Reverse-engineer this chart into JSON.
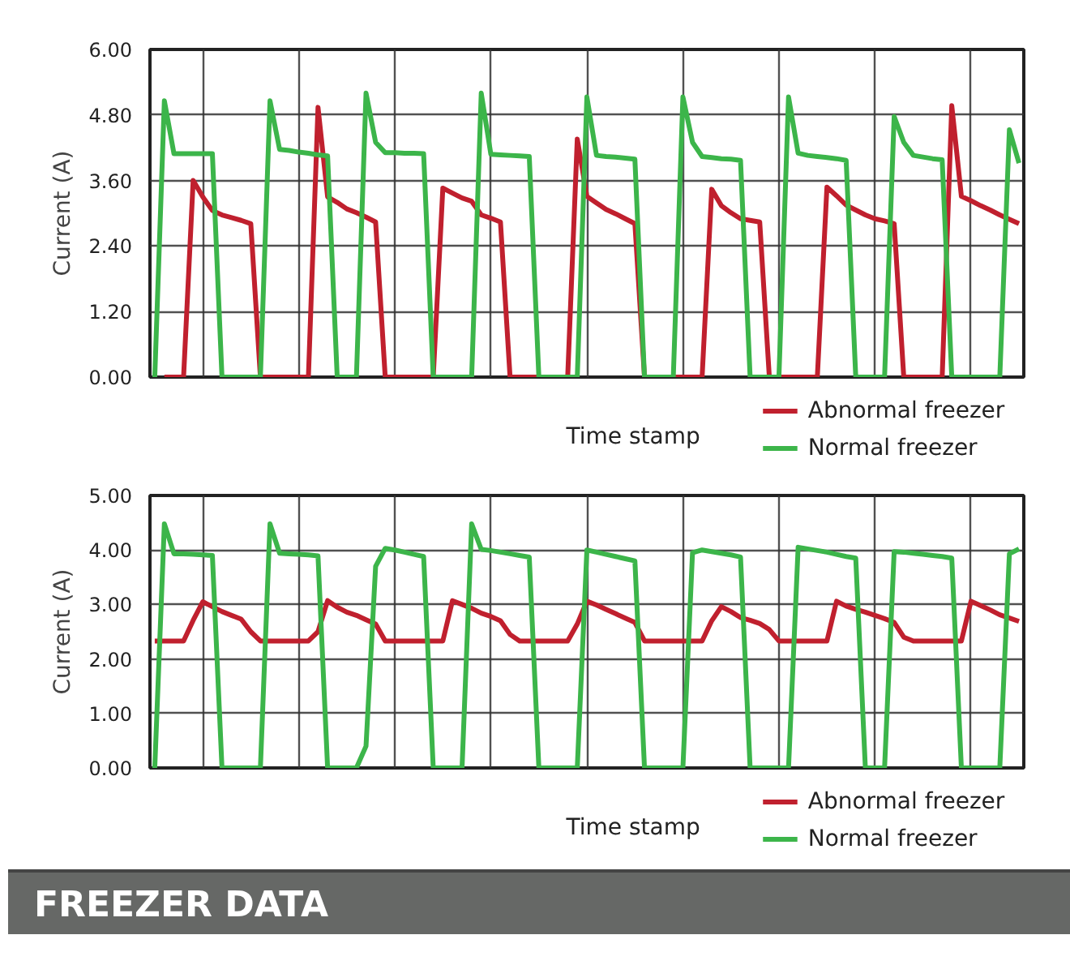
{
  "chart_data": [
    {
      "type": "line",
      "xlabel": "Time stamp",
      "ylabel": "Current (A)",
      "ylim": [
        0,
        6
      ],
      "grid": true,
      "legend": "bottom right",
      "categories": [
        null,
        null,
        null,
        null,
        null,
        null,
        null,
        null,
        null,
        null,
        null,
        null,
        null,
        null,
        null,
        null,
        null,
        null,
        null,
        null,
        null,
        null,
        null,
        null,
        null,
        null,
        null,
        null,
        null,
        null,
        null,
        null,
        null,
        null,
        null,
        null,
        null,
        null,
        null,
        null,
        null,
        null,
        null,
        null,
        null,
        null,
        null,
        null,
        null,
        null,
        null,
        null,
        null,
        null,
        null,
        null,
        null,
        null,
        null,
        null,
        null,
        null,
        null,
        null,
        null,
        null,
        null,
        null,
        null,
        null,
        null,
        null,
        null,
        null,
        null,
        null,
        null,
        null,
        null,
        null,
        null,
        null,
        null,
        null,
        null,
        null,
        null,
        null,
        null,
        null,
        null
      ],
      "yticks": [
        {
          "value": 0,
          "label": "0.00"
        },
        {
          "value": 1.2,
          "label": "1.20"
        },
        {
          "value": 2.4,
          "label": "2.40"
        },
        {
          "value": 3.6,
          "label": "3.60"
        },
        {
          "value": 4.8,
          "label": "4.80"
        },
        {
          "value": 6,
          "label": "6.00"
        }
      ],
      "series": [
        {
          "name": "Abnormal freezer",
          "color": "#c0202e",
          "values": [
            null,
            0,
            0,
            0,
            3.6,
            3.3,
            3.05,
            2.97,
            2.92,
            2.87,
            2.81,
            0,
            0,
            0,
            0,
            0,
            0,
            4.94,
            3.3,
            3.2,
            3.08,
            3.01,
            2.93,
            2.84,
            0,
            0,
            0,
            0,
            0,
            0,
            3.46,
            3.37,
            3.28,
            3.22,
            2.97,
            2.91,
            2.84,
            0,
            0,
            0,
            0,
            0,
            0,
            0,
            4.36,
            3.31,
            3.19,
            3.07,
            2.99,
            2.9,
            2.81,
            0,
            0,
            0,
            0,
            0,
            0,
            0,
            3.44,
            3.14,
            3.01,
            2.9,
            2.87,
            2.84,
            0,
            0,
            0,
            0,
            0,
            0,
            3.48,
            3.32,
            3.15,
            3.06,
            2.97,
            2.9,
            2.86,
            2.81,
            0,
            0,
            0,
            0,
            0,
            4.97,
            3.31,
            3.23,
            3.14,
            3.06,
            2.97,
            2.89,
            2.81
          ]
        },
        {
          "name": "Normal freezer",
          "color": "#3cb54a",
          "values": [
            0,
            5.06,
            4.09,
            4.09,
            4.09,
            4.09,
            4.09,
            0,
            0,
            0,
            0,
            0,
            5.06,
            4.17,
            4.15,
            4.12,
            4.1,
            4.07,
            4.05,
            0,
            0,
            0,
            5.2,
            4.3,
            4.11,
            4.11,
            4.1,
            4.1,
            4.09,
            0,
            0,
            0,
            0,
            0,
            5.2,
            4.08,
            4.07,
            4.06,
            4.05,
            4.04,
            0,
            0,
            0,
            0,
            0,
            5.13,
            4.06,
            4.04,
            4.03,
            4.01,
            3.99,
            0,
            0,
            0,
            0,
            5.13,
            4.3,
            4.04,
            4.02,
            4.0,
            3.99,
            3.97,
            0,
            0,
            0,
            0,
            5.13,
            4.1,
            4.06,
            4.04,
            4.02,
            4.0,
            3.97,
            0,
            0,
            0,
            0,
            4.77,
            4.3,
            4.06,
            4.03,
            4.0,
            3.98,
            0,
            0,
            0,
            0,
            0,
            0,
            4.53,
            3.92
          ]
        }
      ]
    },
    {
      "type": "line",
      "xlabel": "Time stamp",
      "ylabel": "Current (A)",
      "ylim": [
        0,
        5
      ],
      "grid": true,
      "legend": "bottom right",
      "annotations": [
        "FREEZER DATA"
      ],
      "categories": [
        null,
        null,
        null,
        null,
        null,
        null,
        null,
        null,
        null,
        null,
        null,
        null,
        null,
        null,
        null,
        null,
        null,
        null,
        null,
        null,
        null,
        null,
        null,
        null,
        null,
        null,
        null,
        null,
        null,
        null,
        null,
        null,
        null,
        null,
        null,
        null,
        null,
        null,
        null,
        null,
        null,
        null,
        null,
        null,
        null,
        null,
        null,
        null,
        null,
        null,
        null,
        null,
        null,
        null,
        null,
        null,
        null,
        null,
        null,
        null,
        null,
        null,
        null,
        null,
        null,
        null,
        null,
        null,
        null,
        null,
        null,
        null,
        null,
        null,
        null,
        null,
        null,
        null,
        null,
        null,
        null,
        null,
        null,
        null,
        null,
        null,
        null,
        null,
        null,
        null,
        null
      ],
      "yticks": [
        {
          "value": 0,
          "label": "0.00"
        },
        {
          "value": 1,
          "label": "1.00"
        },
        {
          "value": 2,
          "label": "2.00"
        },
        {
          "value": 3,
          "label": "3.00"
        },
        {
          "value": 4,
          "label": "4.00"
        },
        {
          "value": 5,
          "label": "5.00"
        }
      ],
      "series": [
        {
          "name": "Abnormal freezer",
          "color": "#c0202e",
          "values": [
            2.33,
            2.33,
            2.33,
            2.33,
            2.71,
            3.05,
            2.96,
            2.87,
            2.8,
            2.73,
            2.5,
            2.33,
            2.33,
            2.33,
            2.33,
            2.33,
            2.33,
            2.5,
            3.07,
            2.95,
            2.86,
            2.8,
            2.72,
            2.64,
            2.33,
            2.33,
            2.33,
            2.33,
            2.33,
            2.33,
            2.33,
            3.07,
            3.0,
            2.93,
            2.84,
            2.78,
            2.7,
            2.45,
            2.33,
            2.33,
            2.33,
            2.33,
            2.33,
            2.33,
            2.64,
            3.06,
            2.99,
            2.91,
            2.83,
            2.75,
            2.67,
            2.33,
            2.33,
            2.33,
            2.33,
            2.33,
            2.33,
            2.33,
            2.7,
            2.96,
            2.87,
            2.76,
            2.71,
            2.65,
            2.54,
            2.33,
            2.33,
            2.33,
            2.33,
            2.33,
            2.33,
            3.06,
            2.97,
            2.91,
            2.86,
            2.8,
            2.74,
            2.67,
            2.4,
            2.33,
            2.33,
            2.33,
            2.33,
            2.33,
            2.33,
            3.06,
            2.98,
            2.9,
            2.81,
            2.75,
            2.69
          ]
        },
        {
          "name": "Normal freezer",
          "color": "#3cb54a",
          "values": [
            0,
            4.48,
            3.93,
            3.93,
            3.92,
            3.91,
            3.9,
            0,
            0,
            0,
            0,
            0,
            4.48,
            3.94,
            3.93,
            3.92,
            3.91,
            3.89,
            0,
            0,
            0,
            0,
            0.4,
            3.7,
            4.03,
            4.0,
            3.96,
            3.92,
            3.88,
            0,
            0,
            0,
            0,
            4.48,
            4.01,
            3.99,
            3.96,
            3.93,
            3.9,
            3.87,
            0,
            0,
            0,
            0,
            0,
            4.0,
            3.96,
            3.92,
            3.88,
            3.84,
            3.8,
            0,
            0,
            0,
            0,
            0,
            3.95,
            4.0,
            3.97,
            3.94,
            3.91,
            3.87,
            0,
            0,
            0,
            0,
            0,
            4.05,
            4.02,
            3.99,
            3.96,
            3.92,
            3.88,
            3.85,
            0,
            0,
            0,
            3.97,
            3.96,
            3.94,
            3.92,
            3.9,
            3.88,
            3.85,
            0,
            0,
            0,
            0,
            0,
            3.93,
            4.02
          ]
        }
      ]
    }
  ]
}
